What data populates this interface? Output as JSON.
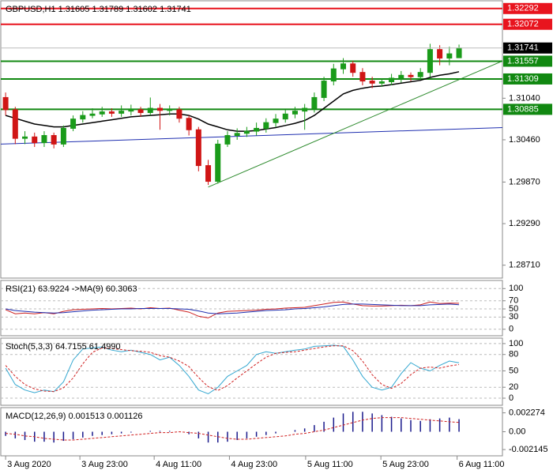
{
  "chart_data": [
    {
      "type": "candlestick",
      "title": "GBPUSD,H1  1.31605 1.31789 1.31602 1.31741",
      "up_color": "#1a9b1a",
      "down_color": "#d01515",
      "xlim": [
        -0.5,
        51.5
      ],
      "ylim": [
        1.2853,
        1.324
      ],
      "yticks": [
        {
          "value": 1.3104,
          "label": "1.31040"
        },
        {
          "value": 1.3046,
          "label": "1.30460"
        },
        {
          "value": 1.2987,
          "label": "1.29870"
        },
        {
          "value": 1.2929,
          "label": "1.29290"
        },
        {
          "value": 1.2871,
          "label": "1.28710"
        }
      ],
      "open": [
        1.3105,
        1.3088,
        1.3048,
        1.305,
        1.3042,
        1.3052,
        1.304,
        1.3062,
        1.3075,
        1.308,
        1.3082,
        1.3085,
        1.3083,
        1.3086,
        1.3088,
        1.3084,
        1.309,
        1.3087,
        1.3088,
        1.3076,
        1.306,
        1.301,
        1.2988,
        1.304,
        1.3052,
        1.3055,
        1.3058,
        1.3062,
        1.307,
        1.3075,
        1.3082,
        1.3086,
        1.309,
        1.3105,
        1.3128,
        1.3145,
        1.3152,
        1.314,
        1.3128,
        1.3125,
        1.3127,
        1.3132,
        1.3136,
        1.3134,
        1.314,
        1.3172,
        1.316,
        1.31605
      ],
      "high": [
        1.3112,
        1.3092,
        1.3058,
        1.3056,
        1.3058,
        1.3056,
        1.3066,
        1.308,
        1.3086,
        1.309,
        1.3092,
        1.309,
        1.3094,
        1.3095,
        1.3092,
        1.3105,
        1.3096,
        1.3094,
        1.3092,
        1.308,
        1.3064,
        1.3018,
        1.3046,
        1.3058,
        1.3062,
        1.3064,
        1.307,
        1.3076,
        1.3082,
        1.3088,
        1.3092,
        1.3096,
        1.3112,
        1.3134,
        1.3152,
        1.316,
        1.3156,
        1.3146,
        1.3134,
        1.3132,
        1.3138,
        1.3142,
        1.314,
        1.3146,
        1.318,
        1.3178,
        1.3176,
        1.31789
      ],
      "low": [
        1.308,
        1.304,
        1.304,
        1.3036,
        1.3036,
        1.3034,
        1.3036,
        1.3058,
        1.307,
        1.3076,
        1.3078,
        1.3078,
        1.3078,
        1.308,
        1.3078,
        1.308,
        1.306,
        1.308,
        1.307,
        1.3052,
        1.3002,
        1.2983,
        1.2985,
        1.3036,
        1.3046,
        1.305,
        1.3052,
        1.3056,
        1.3064,
        1.307,
        1.3076,
        1.306,
        1.3084,
        1.31,
        1.3122,
        1.3138,
        1.3134,
        1.3122,
        1.3118,
        1.312,
        1.3122,
        1.3126,
        1.3128,
        1.313,
        1.3134,
        1.315,
        1.315,
        1.31602
      ],
      "close": [
        1.3088,
        1.3048,
        1.305,
        1.3042,
        1.3052,
        1.304,
        1.3062,
        1.3075,
        1.308,
        1.3082,
        1.3085,
        1.3083,
        1.3086,
        1.3088,
        1.3084,
        1.309,
        1.3087,
        1.3088,
        1.3076,
        1.306,
        1.301,
        1.2988,
        1.304,
        1.3052,
        1.3055,
        1.3058,
        1.3062,
        1.307,
        1.3075,
        1.3082,
        1.3086,
        1.309,
        1.3105,
        1.3128,
        1.3145,
        1.3152,
        1.314,
        1.3128,
        1.3125,
        1.3127,
        1.3132,
        1.3136,
        1.3134,
        1.314,
        1.3172,
        1.316,
        1.3166,
        1.31741
      ],
      "ma": {
        "color": "#000000",
        "values": [
          1.308,
          1.3076,
          1.3072,
          1.3068,
          1.3066,
          1.3064,
          1.3064,
          1.3066,
          1.3068,
          1.307,
          1.3072,
          1.3074,
          1.3076,
          1.3078,
          1.3079,
          1.308,
          1.3081,
          1.3082,
          1.3082,
          1.308,
          1.3075,
          1.3068,
          1.3064,
          1.306,
          1.3058,
          1.3058,
          1.3059,
          1.3061,
          1.3063,
          1.3066,
          1.3069,
          1.3073,
          1.308,
          1.309,
          1.31,
          1.311,
          1.3115,
          1.3118,
          1.312,
          1.3121,
          1.3123,
          1.3125,
          1.3127,
          1.3129,
          1.3133,
          1.3136,
          1.3138,
          1.3141
        ]
      },
      "lines": [
        {
          "color": "#1f2fb0",
          "x": [
            -0.5,
            51.5
          ],
          "values": [
            1.304,
            1.3063
          ]
        },
        {
          "color": "#2e8b2e",
          "x": [
            21,
            51.5
          ],
          "values": [
            1.298,
            1.3156
          ]
        }
      ],
      "levels": [
        {
          "value": 1.32292,
          "color": "#e8141e"
        },
        {
          "value": 1.32072,
          "color": "#e8141e"
        },
        {
          "value": 1.31557,
          "color": "#118811"
        },
        {
          "value": 1.31309,
          "color": "#118811"
        },
        {
          "value": 1.30885,
          "color": "#118811"
        }
      ],
      "last_color": "#000000"
    },
    {
      "type": "line",
      "title": "RSI(21) 63.9224  ->MA(9) 60.3063",
      "xlim": [
        -0.5,
        51.5
      ],
      "ylim": [
        -16,
        120
      ],
      "yticks": [
        100,
        70,
        50,
        30,
        0
      ],
      "grid": true,
      "series": [
        {
          "color": "#cc2020",
          "dashed": false,
          "values": [
            48,
            38,
            40,
            38,
            41,
            38,
            44,
            48,
            49,
            50,
            51,
            50,
            51,
            52,
            50,
            53,
            51,
            52,
            47,
            42,
            32,
            28,
            40,
            44,
            45,
            46,
            47,
            49,
            50,
            52,
            53,
            54,
            58,
            62,
            66,
            67,
            62,
            58,
            57,
            57,
            58,
            59,
            58,
            60,
            67,
            63,
            64,
            63.9224
          ]
        },
        {
          "color": "#1f2fb0",
          "dashed": false,
          "values": [
            50,
            46,
            44,
            42,
            41,
            40,
            41,
            43,
            45,
            47,
            48,
            49,
            50,
            50,
            51,
            51,
            51,
            51,
            50,
            49,
            45,
            40,
            38,
            39,
            40,
            42,
            44,
            46,
            47,
            48,
            50,
            51,
            53,
            55,
            58,
            61,
            62,
            62,
            61,
            60,
            59,
            58,
            58,
            58,
            60,
            61,
            62,
            60.3063
          ]
        }
      ]
    },
    {
      "type": "line",
      "title": "Stoch(5,3,3) 64.7155 61.4990",
      "xlim": [
        -0.5,
        51.5
      ],
      "ylim": [
        -13,
        110
      ],
      "yticks": [
        100,
        80,
        50,
        20,
        0
      ],
      "grid": true,
      "series": [
        {
          "color": "#33a7d0",
          "dashed": false,
          "values": [
            55,
            25,
            15,
            10,
            15,
            12,
            30,
            70,
            90,
            92,
            94,
            88,
            85,
            88,
            84,
            80,
            70,
            75,
            60,
            40,
            15,
            8,
            20,
            40,
            50,
            60,
            80,
            85,
            82,
            85,
            88,
            90,
            95,
            96,
            97,
            95,
            70,
            40,
            20,
            15,
            20,
            45,
            65,
            55,
            50,
            60,
            68,
            64.7155
          ]
        },
        {
          "color": "#d02020",
          "dashed": true,
          "values": [
            60,
            40,
            25,
            17,
            13,
            12,
            19,
            37,
            63,
            84,
            92,
            91,
            89,
            87,
            86,
            84,
            78,
            75,
            68,
            58,
            38,
            21,
            14,
            23,
            37,
            50,
            63,
            75,
            82,
            84,
            85,
            88,
            91,
            94,
            96,
            96,
            87,
            68,
            43,
            25,
            18,
            27,
            43,
            55,
            57,
            55,
            59,
            61.499
          ]
        }
      ]
    },
    {
      "type": "macd",
      "title": "MACD(12,26,9) 0.001513 0.001126",
      "xlim": [
        -0.5,
        51.5
      ],
      "ylim": [
        -0.0029,
        0.0029
      ],
      "yticks": [
        0.002274,
        {
          "value": 0,
          "label": "0.00"
        },
        -0.002145
      ],
      "histogram": {
        "color": "#1a1a8c",
        "values": [
          -0.0005,
          -0.0008,
          -0.001,
          -0.0012,
          -0.0012,
          -0.0013,
          -0.0011,
          -0.0009,
          -0.0007,
          -0.0005,
          -0.0004,
          -0.0003,
          -0.0002,
          -0.0001,
          0.0,
          0.0001,
          0.0001,
          0.0001,
          0.0,
          -0.0003,
          -0.0008,
          -0.0013,
          -0.0013,
          -0.0012,
          -0.001,
          -0.0008,
          -0.0006,
          -0.0004,
          -0.0002,
          0.0,
          0.0002,
          0.0004,
          0.0008,
          0.0012,
          0.0017,
          0.0022,
          0.0024,
          0.0024,
          0.0022,
          0.002,
          0.0018,
          0.0016,
          0.0014,
          0.0013,
          0.0015,
          0.0016,
          0.0017,
          0.001513
        ]
      },
      "signal": {
        "color": "#d02020",
        "dashed": true,
        "values": [
          -0.0002,
          -0.0003,
          -0.0005,
          -0.0006,
          -0.0008,
          -0.0009,
          -0.001,
          -0.001,
          -0.0009,
          -0.0008,
          -0.0007,
          -0.0006,
          -0.0005,
          -0.0004,
          -0.0003,
          -0.0002,
          -0.0001,
          -0.0001,
          0.0,
          -0.0001,
          -0.0002,
          -0.0004,
          -0.0006,
          -0.0008,
          -0.0009,
          -0.0009,
          -0.0008,
          -0.0007,
          -0.0006,
          -0.0005,
          -0.0003,
          -0.0002,
          0.0,
          0.0002,
          0.0005,
          0.0008,
          0.0011,
          0.0014,
          0.0016,
          0.0017,
          0.0017,
          0.0017,
          0.0016,
          0.0015,
          0.0014,
          0.0013,
          0.0012,
          0.001126
        ]
      },
      "xticks": [
        {
          "value": 0,
          "label": "3 Aug 2020"
        },
        {
          "value": 7.7,
          "label": "3 Aug 23:00"
        },
        {
          "value": 15.4,
          "label": "4 Aug 11:00"
        },
        {
          "value": 23.2,
          "label": "4 Aug 23:00"
        },
        {
          "value": 31.1,
          "label": "5 Aug 11:00"
        },
        {
          "value": 38.9,
          "label": "5 Aug 23:00"
        },
        {
          "value": 46.8,
          "label": "6 Aug 11:00"
        }
      ]
    }
  ]
}
